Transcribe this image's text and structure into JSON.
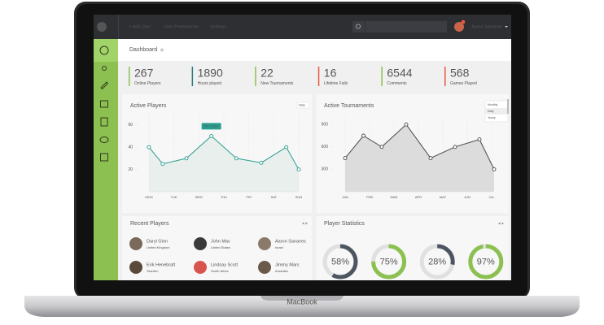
{
  "nav": {
    "links": [
      "+ Add User",
      "User Preferences",
      "Settings"
    ],
    "user": "Aaron Sananes"
  },
  "header": {
    "title": "Dashboard"
  },
  "stats": [
    {
      "value": 267,
      "label": "Online Players",
      "color": "#8cc152"
    },
    {
      "value": 1890,
      "label": "Hours played",
      "color": "#2c7a7b"
    },
    {
      "value": 22,
      "label": "New Tournaments",
      "color": "#8cc152"
    },
    {
      "value": 16,
      "label": "Lifetime Falls",
      "color": "#e9573f"
    },
    {
      "value": 6544,
      "label": "Comments",
      "color": "#8cc152"
    },
    {
      "value": 568,
      "label": "Games Played",
      "color": "#e9573f"
    }
  ],
  "active_players": {
    "type": "line",
    "title": "Active Players",
    "filter": "Daily",
    "x": [
      0,
      0.55,
      1.5,
      2.5,
      3.5,
      4.5,
      5.5,
      6
    ],
    "values": [
      40,
      25,
      30,
      50,
      30,
      26,
      40,
      20
    ],
    "xlim": [
      0,
      6
    ],
    "xticks": [
      {
        "value": 0,
        "label": "MON"
      },
      {
        "value": 1,
        "label": "TUE"
      },
      {
        "value": 2,
        "label": "WED"
      },
      {
        "value": 3,
        "label": "THU"
      },
      {
        "value": 4,
        "label": "FRI"
      },
      {
        "value": 5,
        "label": "SAT"
      },
      {
        "value": 6,
        "label": "SUN"
      }
    ],
    "ylim": [
      0,
      70
    ],
    "yticks": [
      20,
      40,
      60
    ],
    "tooltip": "50 ↑ 16%",
    "color": "#2a9d8f",
    "area_color": "#e8efed"
  },
  "active_tournaments": {
    "type": "line",
    "title": "Active Tournaments",
    "filter_options": [
      "Monthly",
      "Daily",
      "Yearly"
    ],
    "x": [
      0,
      0.75,
      1.5,
      2.5,
      3.5,
      4.5,
      5.5,
      6.1
    ],
    "values": [
      450,
      750,
      600,
      900,
      450,
      600,
      700,
      300
    ],
    "xlim": [
      0,
      6
    ],
    "xticks": [
      {
        "value": 0,
        "label": "JAN"
      },
      {
        "value": 1,
        "label": "FEB"
      },
      {
        "value": 2,
        "label": "MAR"
      },
      {
        "value": 3,
        "label": "APR"
      },
      {
        "value": 4,
        "label": "MAY"
      },
      {
        "value": 5,
        "label": "JUN"
      },
      {
        "value": 6,
        "label": "JUL"
      }
    ],
    "ylim": [
      0,
      1000
    ],
    "yticks": [
      300,
      600,
      900
    ],
    "color": "#4a4a4a",
    "area_color": "#dcdcdc"
  },
  "recent_players": {
    "title": "Recent Players",
    "players": [
      {
        "name": "Daryl Ginn",
        "country": "United Kingdom"
      },
      {
        "name": "John Mac",
        "country": "United States"
      },
      {
        "name": "Aaron Sananes",
        "country": "Israel"
      },
      {
        "name": "Erik Henebratt",
        "country": "Sweden"
      },
      {
        "name": "Lindsay Scott",
        "country": "South Africa"
      },
      {
        "name": "Jimmy Mars",
        "country": "Australia"
      }
    ]
  },
  "player_statistics": {
    "type": "donut",
    "title": "Player Statistics",
    "values": [
      58,
      75,
      28,
      97
    ],
    "value_labels": [
      "58%",
      "75%",
      "28%",
      "97%"
    ],
    "colors": [
      "#4d5560",
      "#8cc152",
      "#4d5560",
      "#8cc152"
    ]
  },
  "device": {
    "label": "MacBook"
  }
}
